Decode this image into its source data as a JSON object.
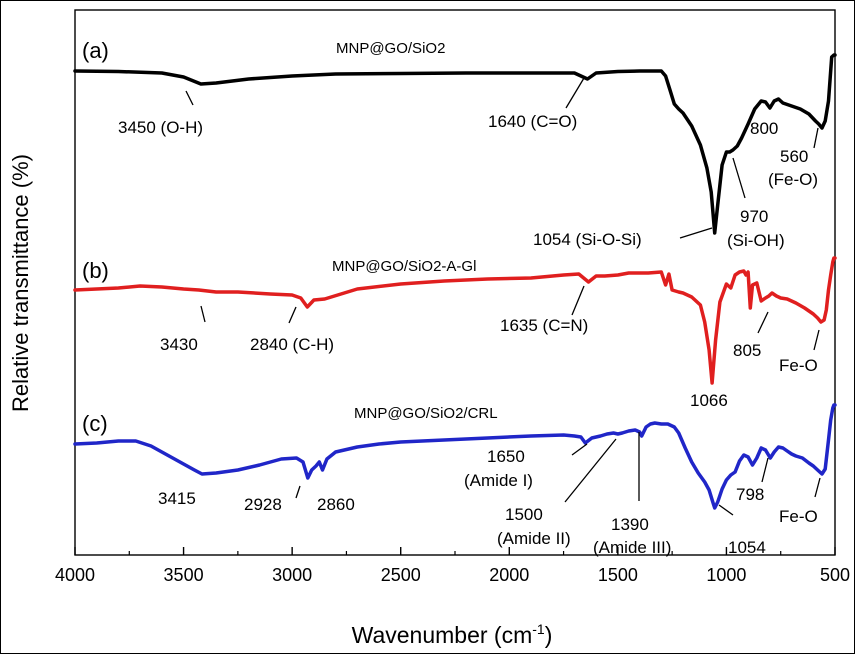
{
  "chart_data": {
    "type": "line",
    "title": "",
    "xlabel_main": "Wavenumber (cm",
    "xlabel_sup": "-1",
    "xlabel_close": ")",
    "ylabel": "Relative transmittance (%)",
    "xlim": [
      4000,
      500
    ],
    "x_ticks": [
      4000,
      3500,
      3000,
      2500,
      2000,
      1500,
      1000,
      500
    ],
    "x_tick_labels": [
      "4000",
      "3500",
      "3000",
      "2500",
      "2000",
      "1500",
      "1000",
      "500"
    ],
    "grid": false,
    "series": [
      {
        "tag": "(a)",
        "name": "MNP@GO/SiO2",
        "color": "#000000",
        "x": [
          4000,
          3800,
          3600,
          3500,
          3420,
          3350,
          3200,
          3000,
          2800,
          2500,
          2200,
          2000,
          1800,
          1700,
          1640,
          1600,
          1500,
          1400,
          1330,
          1300,
          1280,
          1260,
          1240,
          1220,
          1200,
          1160,
          1120,
          1090,
          1070,
          1054,
          1040,
          1020,
          1000,
          985,
          970,
          950,
          930,
          900,
          870,
          840,
          820,
          800,
          780,
          760,
          740,
          700,
          660,
          620,
          590,
          575,
          560,
          545,
          530,
          515,
          505,
          500
        ],
        "y": [
          71,
          71.5,
          73,
          77,
          84,
          83,
          79,
          76,
          74,
          73.5,
          73,
          73,
          73,
          73,
          79,
          73,
          71.5,
          71,
          71,
          71,
          76,
          90,
          104,
          109,
          113,
          126,
          145,
          168,
          192,
          233,
          205,
          165,
          152,
          152,
          150,
          146,
          138,
          124,
          109,
          101,
          102,
          108,
          101,
          99,
          103,
          106,
          109,
          114,
          121,
          124,
          128,
          121,
          101,
          57,
          55,
          55
        ]
      },
      {
        "tag": "(b)",
        "name": "MNP@GO/SiO2-A-Gl",
        "color": "#e01f1f",
        "x": [
          4000,
          3900,
          3800,
          3700,
          3600,
          3500,
          3430,
          3350,
          3250,
          3100,
          3000,
          2960,
          2930,
          2900,
          2850,
          2700,
          2500,
          2300,
          2100,
          1900,
          1750,
          1680,
          1635,
          1600,
          1560,
          1500,
          1450,
          1400,
          1360,
          1300,
          1280,
          1265,
          1250,
          1220,
          1200,
          1160,
          1120,
          1100,
          1080,
          1066,
          1050,
          1030,
          1000,
          980,
          960,
          940,
          920,
          910,
          900,
          890,
          880,
          860,
          840,
          820,
          805,
          790,
          770,
          750,
          720,
          680,
          640,
          600,
          580,
          565,
          550,
          540,
          530,
          520,
          510,
          505,
          500
        ],
        "y": [
          290,
          289,
          288,
          286,
          287,
          289,
          290,
          292,
          292,
          294,
          295,
          298,
          307,
          300,
          299,
          289,
          284,
          281,
          279,
          278,
          275,
          274,
          282,
          276,
          276,
          275,
          273,
          273,
          273,
          272,
          285,
          274,
          290,
          292,
          293,
          297,
          305,
          322,
          350,
          383,
          340,
          302,
          284,
          288,
          275,
          272,
          271,
          275,
          272,
          308,
          285,
          283,
          301,
          298,
          296,
          293,
          296,
          298,
          299,
          303,
          308,
          314,
          318,
          322,
          320,
          310,
          290,
          275,
          262,
          258,
          258
        ]
      },
      {
        "tag": "(c)",
        "name": "MNP@GO/SiO2/CRL",
        "color": "#2026c8",
        "x": [
          4000,
          3900,
          3800,
          3720,
          3650,
          3550,
          3450,
          3415,
          3350,
          3250,
          3150,
          3050,
          2980,
          2950,
          2928,
          2910,
          2890,
          2875,
          2860,
          2840,
          2800,
          2700,
          2600,
          2500,
          2300,
          2100,
          1900,
          1750,
          1700,
          1670,
          1650,
          1620,
          1580,
          1550,
          1520,
          1500,
          1480,
          1450,
          1420,
          1400,
          1390,
          1370,
          1350,
          1330,
          1300,
          1270,
          1240,
          1220,
          1190,
          1160,
          1130,
          1100,
          1080,
          1060,
          1054,
          1040,
          1020,
          1000,
          980,
          960,
          940,
          920,
          900,
          880,
          860,
          840,
          820,
          798,
          780,
          760,
          740,
          720,
          700,
          680,
          650,
          620,
          600,
          580,
          560,
          545,
          530,
          520,
          510,
          505,
          500
        ],
        "y": [
          444,
          443,
          441,
          441,
          446,
          458,
          470,
          474,
          473,
          470,
          465,
          459,
          458,
          462,
          478,
          470,
          466,
          462,
          470,
          459,
          452,
          447,
          444,
          442,
          440,
          438,
          436,
          435,
          436,
          437,
          443,
          438,
          436,
          434,
          433,
          434,
          433,
          431,
          430,
          432,
          436,
          427,
          424,
          423,
          424,
          424,
          427,
          433,
          448,
          462,
          473,
          482,
          490,
          504,
          508,
          502,
          489,
          480,
          475,
          472,
          461,
          455,
          457,
          465,
          458,
          448,
          450,
          458,
          452,
          447,
          448,
          451,
          454,
          456,
          458,
          463,
          466,
          470,
          474,
          469,
          440,
          420,
          408,
          405,
          405
        ]
      }
    ],
    "annotations": [
      {
        "text": "3450 (O-H)"
      },
      {
        "text": "1640 (C=O)"
      },
      {
        "text": "800"
      },
      {
        "text": "560"
      },
      {
        "text": "(Fe-O)"
      },
      {
        "text": "970"
      },
      {
        "text": "(Si-OH)"
      },
      {
        "text": "1054 (Si-O-Si)"
      },
      {
        "text": "3430"
      },
      {
        "text": "2840 (C-H)"
      },
      {
        "text": "1635 (C=N)"
      },
      {
        "text": "805"
      },
      {
        "text": "Fe-O"
      },
      {
        "text": "1066"
      },
      {
        "text": "3415"
      },
      {
        "text": "2928"
      },
      {
        "text": "2860"
      },
      {
        "text": "1650"
      },
      {
        "text": "(Amide I)"
      },
      {
        "text": "1500"
      },
      {
        "text": "(Amide II)"
      },
      {
        "text": "1390"
      },
      {
        "text": "(Amide III)"
      },
      {
        "text": "1054"
      },
      {
        "text": "798"
      },
      {
        "text": "Fe-O"
      }
    ]
  }
}
